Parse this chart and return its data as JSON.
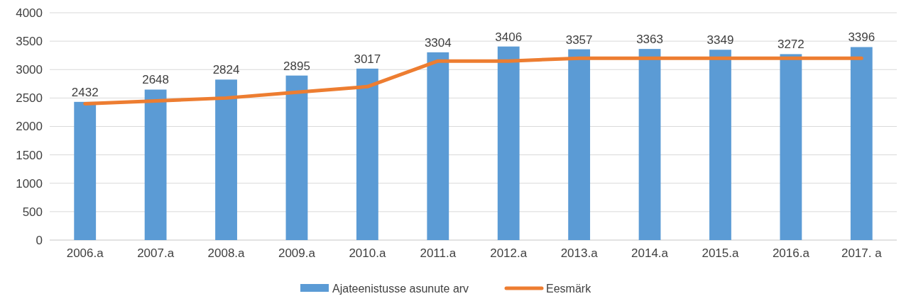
{
  "chart_data": {
    "type": "bar",
    "categories": [
      "2006.a",
      "2007.a",
      "2008.a",
      "2009.a",
      "2010.a",
      "2011.a",
      "2012.a",
      "2013.a",
      "2014.a",
      "2015.a",
      "2016.a",
      "2017. a"
    ],
    "series": [
      {
        "name": "Ajateenistusse asunute arv",
        "color": "#5b9bd5",
        "values": [
          2432,
          2648,
          2824,
          2895,
          3017,
          3304,
          3406,
          3357,
          3363,
          3349,
          3272,
          3396
        ],
        "data_labels": true
      },
      {
        "name": "Eesmärk",
        "type": "line",
        "color": "#ed7d31",
        "values": [
          2400,
          2450,
          2500,
          2600,
          2700,
          3150,
          3150,
          3200,
          3200,
          3200,
          3200,
          3200
        ]
      }
    ],
    "ylim": [
      0,
      4000
    ],
    "yticks": [
      0,
      500,
      1000,
      1500,
      2000,
      2500,
      3000,
      3500,
      4000
    ],
    "grid": "y",
    "legend": "bottom",
    "marker": "none"
  }
}
